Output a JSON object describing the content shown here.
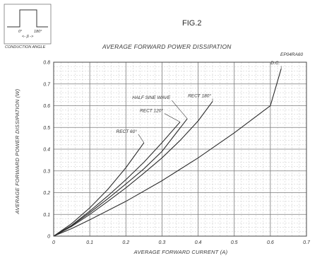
{
  "figure_label": "FIG.2",
  "inset": {
    "caption": "CONDUCTION ANGLE",
    "angle_start": "0°",
    "angle_end": "180°",
    "beta": "<- β ->"
  },
  "chart_data": {
    "type": "line",
    "title": "AVERAGE FORWARD POWER DISSIPATION",
    "part_label": "EP04RA60",
    "xlabel": "AVERAGE FORWARD CURRENT (A)",
    "ylabel": "AVERAGE FORWARD POWER DISSIPATION (W)",
    "xlim": [
      0,
      0.7
    ],
    "ylim": [
      0,
      0.8
    ],
    "x_ticks": [
      0,
      0.1,
      0.2,
      0.3,
      0.4,
      0.5,
      0.6,
      0.7
    ],
    "y_ticks": [
      0,
      0.1,
      0.2,
      0.3,
      0.4,
      0.5,
      0.6,
      0.7,
      0.8
    ],
    "x_tick_labels": [
      "0",
      "0.1",
      "0.2",
      "0.3",
      "0.4",
      "0.5",
      "0.6",
      "0.7"
    ],
    "y_tick_labels": [
      "0",
      "0.1",
      "0.2",
      "0.3",
      "0.4",
      "0.5",
      "0.6",
      "0.7",
      "0.8"
    ],
    "grid": true,
    "series": [
      {
        "name": "RECT 60°",
        "x": [
          0,
          0.05,
          0.1,
          0.15,
          0.2,
          0.25
        ],
        "y": [
          0,
          0.058,
          0.13,
          0.215,
          0.315,
          0.43
        ]
      },
      {
        "name": "RECT 120°",
        "x": [
          0,
          0.05,
          0.1,
          0.15,
          0.2,
          0.25,
          0.3,
          0.35
        ],
        "y": [
          0,
          0.05,
          0.115,
          0.185,
          0.26,
          0.34,
          0.43,
          0.525
        ]
      },
      {
        "name": "HALF SINE WAVE",
        "x": [
          0,
          0.05,
          0.1,
          0.15,
          0.2,
          0.25,
          0.3,
          0.37
        ],
        "y": [
          0,
          0.048,
          0.108,
          0.172,
          0.24,
          0.31,
          0.39,
          0.54
        ]
      },
      {
        "name": "RECT 180°",
        "x": [
          0,
          0.05,
          0.1,
          0.15,
          0.2,
          0.25,
          0.3,
          0.35,
          0.4,
          0.44
        ],
        "y": [
          0,
          0.045,
          0.1,
          0.16,
          0.222,
          0.29,
          0.36,
          0.44,
          0.53,
          0.62
        ]
      },
      {
        "name": "D.C.",
        "x": [
          0,
          0.05,
          0.1,
          0.2,
          0.3,
          0.4,
          0.5,
          0.6,
          0.63
        ],
        "y": [
          0,
          0.035,
          0.075,
          0.16,
          0.255,
          0.36,
          0.475,
          0.6,
          0.77
        ]
      }
    ]
  }
}
